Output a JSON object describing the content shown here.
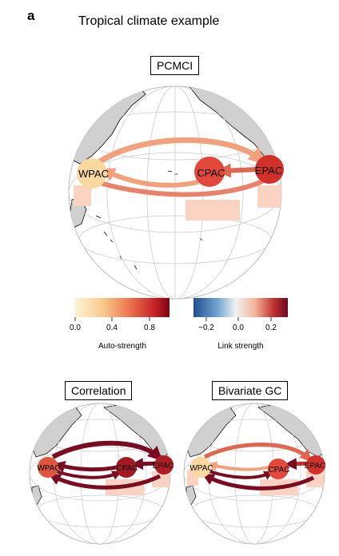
{
  "panel": {
    "letter": "a",
    "title": "Tropical climate example"
  },
  "globes": [
    {
      "id": "pcmci",
      "label": "PCMCI",
      "nodes": [
        {
          "label": "WPAC",
          "auto_strength": 0.15,
          "color": "#f9d9a0"
        },
        {
          "label": "CPAC",
          "auto_strength": 0.75,
          "color": "#e3483a"
        },
        {
          "label": "EPAC",
          "auto_strength": 0.85,
          "color": "#d4302a"
        }
      ]
    },
    {
      "id": "correlation",
      "label": "Correlation",
      "nodes": [
        {
          "label": "WPAC",
          "color": "#e0553d"
        },
        {
          "label": "CPAC",
          "color": "#a11a22"
        },
        {
          "label": "EPAC",
          "color": "#b01e25"
        }
      ]
    },
    {
      "id": "bivariate",
      "label": "Bivariate GC",
      "nodes": [
        {
          "label": "WPAC",
          "color": "#f9d9a0"
        },
        {
          "label": "CPAC",
          "color": "#e3483a"
        },
        {
          "label": "EPAC",
          "color": "#d4302a"
        }
      ]
    }
  ],
  "colorbars": {
    "auto": {
      "title": "Auto-strength",
      "ticks": [
        "0.0",
        "0.4",
        "0.8"
      ]
    },
    "link": {
      "title": "Link strength",
      "ticks": [
        "−0.2",
        "0.0",
        "0.2"
      ]
    }
  },
  "colors": {
    "land": "#d0d0d0",
    "grid": "#cccccc",
    "coast": "#000000",
    "link_weak": "#f3a17c",
    "link_mid": "#e0674f",
    "link_strong": "#7a0c22",
    "sst_patch": "#fbd3c2"
  }
}
